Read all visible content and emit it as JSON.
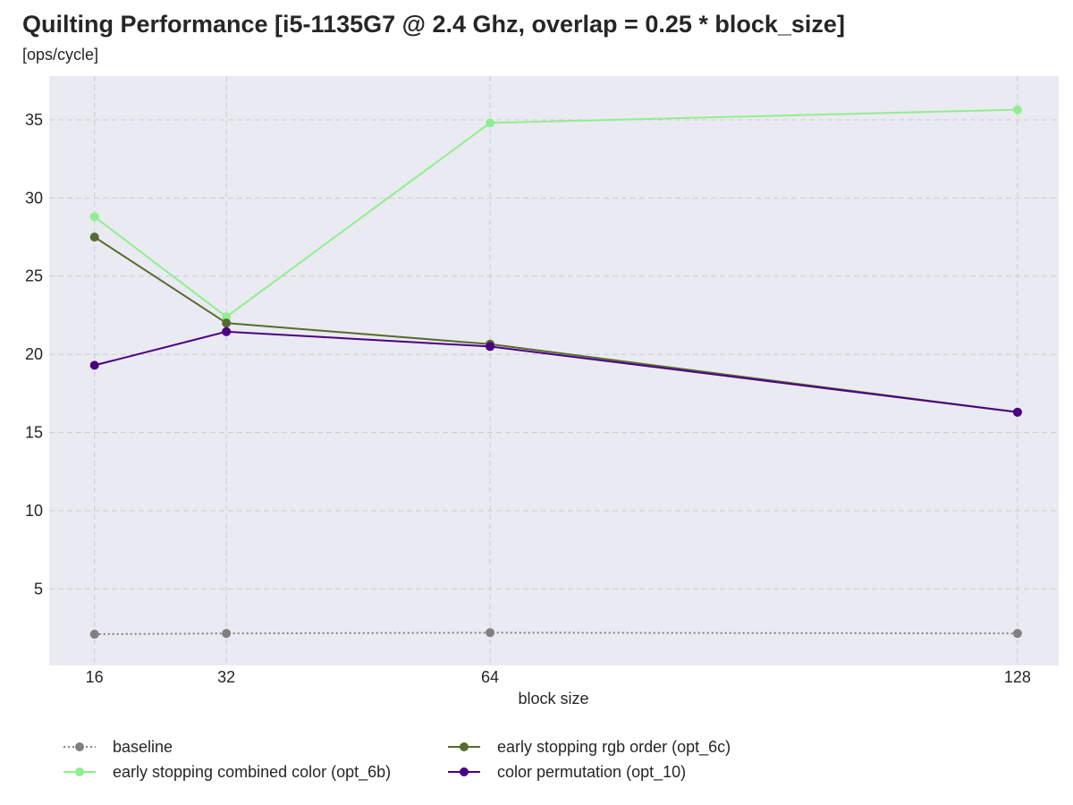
{
  "chart_data": {
    "type": "line",
    "title": "Quilting Performance [i5-1135G7 @ 2.4 Ghz, overlap = 0.25 * block_size]",
    "subtitle": "[ops/cycle]",
    "xlabel": "block size",
    "ylabel": "",
    "x": [
      16,
      32,
      64,
      128
    ],
    "x_tick_labels": [
      "16",
      "32",
      "64",
      "128"
    ],
    "y_ticks": [
      5,
      10,
      15,
      20,
      25,
      30,
      35
    ],
    "y_tick_labels": [
      "5",
      "10",
      "15",
      "20",
      "25",
      "30",
      "35"
    ],
    "xlim": [
      10.5,
      133
    ],
    "ylim": [
      0.1,
      37.8
    ],
    "grid": true,
    "legend_position": "bottom",
    "series": [
      {
        "name": "baseline",
        "values": [
          2.1,
          2.15,
          2.2,
          2.15
        ],
        "color": "#808080",
        "style": "dotted"
      },
      {
        "name": "early stopping combined color (opt_6b)",
        "values": [
          28.8,
          22.4,
          34.8,
          35.65
        ],
        "color": "#90ee90",
        "style": "solid"
      },
      {
        "name": "early stopping rgb order (opt_6c)",
        "values": [
          27.5,
          22.0,
          20.65,
          16.3
        ],
        "color": "#556b2f",
        "style": "solid"
      },
      {
        "name": "color permutation (opt_10)",
        "values": [
          19.3,
          21.45,
          20.5,
          16.3
        ],
        "color": "#4b0082",
        "style": "solid"
      }
    ]
  }
}
